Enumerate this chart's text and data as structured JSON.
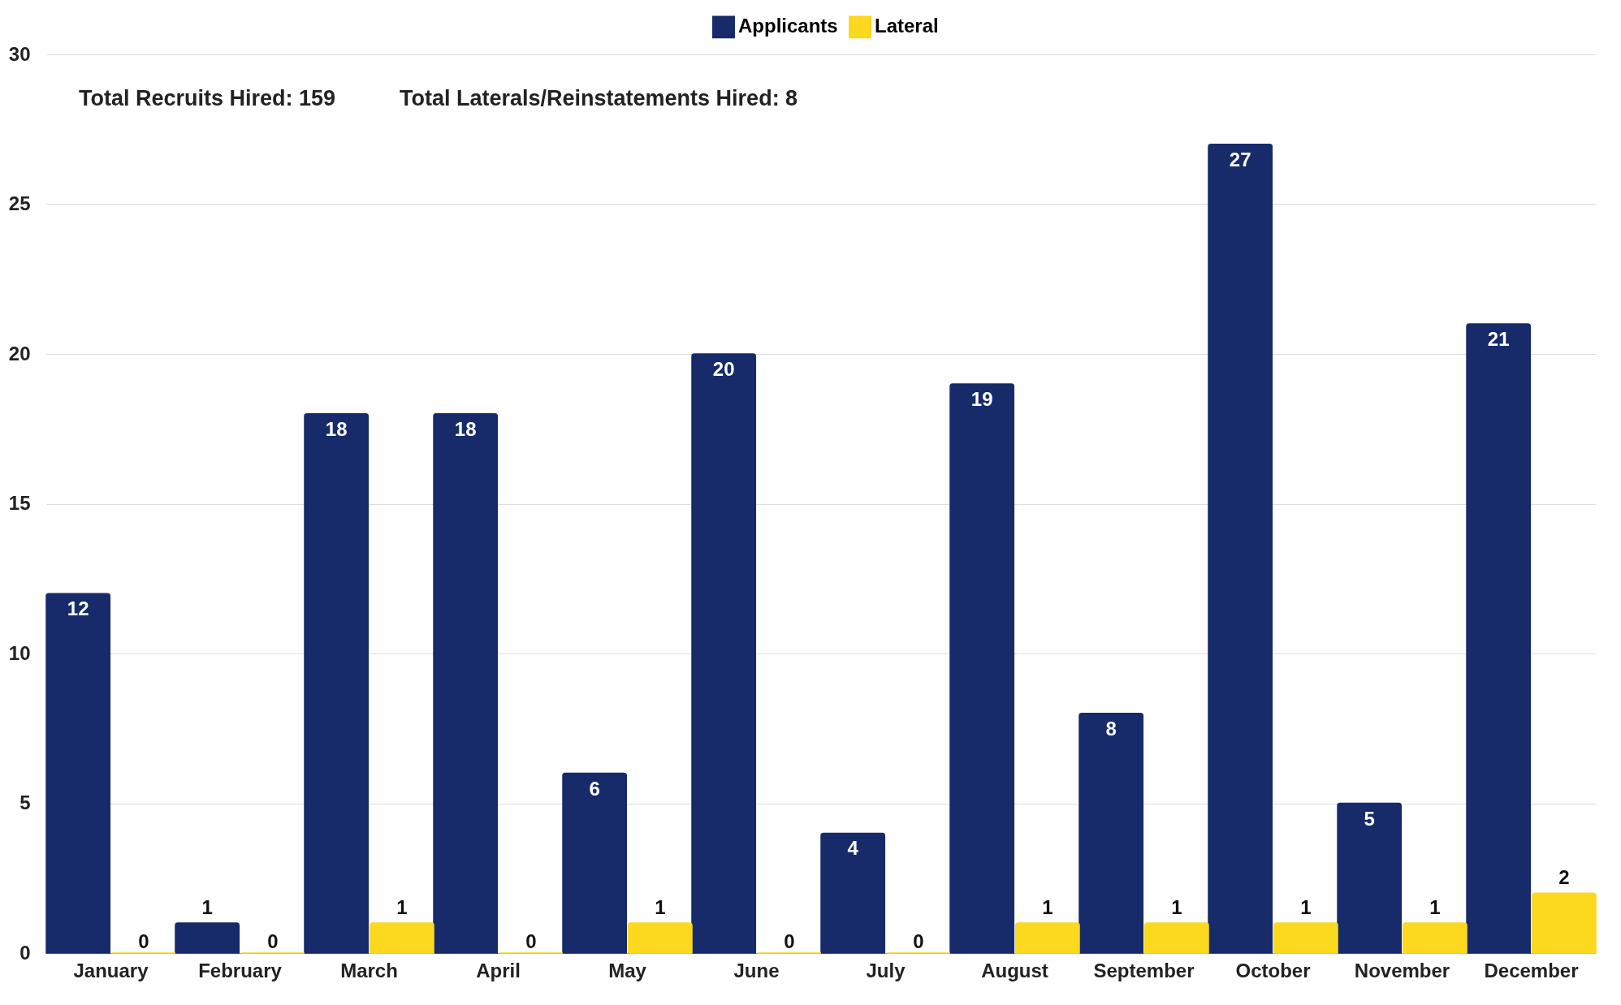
{
  "chart_data": {
    "type": "bar",
    "categories": [
      "January",
      "February",
      "March",
      "April",
      "May",
      "June",
      "July",
      "August",
      "September",
      "October",
      "November",
      "December"
    ],
    "series": [
      {
        "name": "Applicants",
        "color": "#172b6b",
        "values": [
          12,
          1,
          18,
          18,
          6,
          20,
          4,
          19,
          8,
          27,
          5,
          21
        ]
      },
      {
        "name": "Lateral",
        "color": "#fcd81e",
        "values": [
          0,
          0,
          1,
          0,
          1,
          0,
          0,
          1,
          1,
          1,
          1,
          2
        ]
      }
    ],
    "annotations": [
      "Total Recruits Hired: 159",
      "Total Laterals/Reinstatements Hired: 8"
    ],
    "ylim": [
      0,
      30
    ],
    "yticks": [
      0,
      5,
      10,
      15,
      20,
      25,
      30
    ],
    "grid": "y",
    "legend": "top",
    "data_labels": true
  }
}
